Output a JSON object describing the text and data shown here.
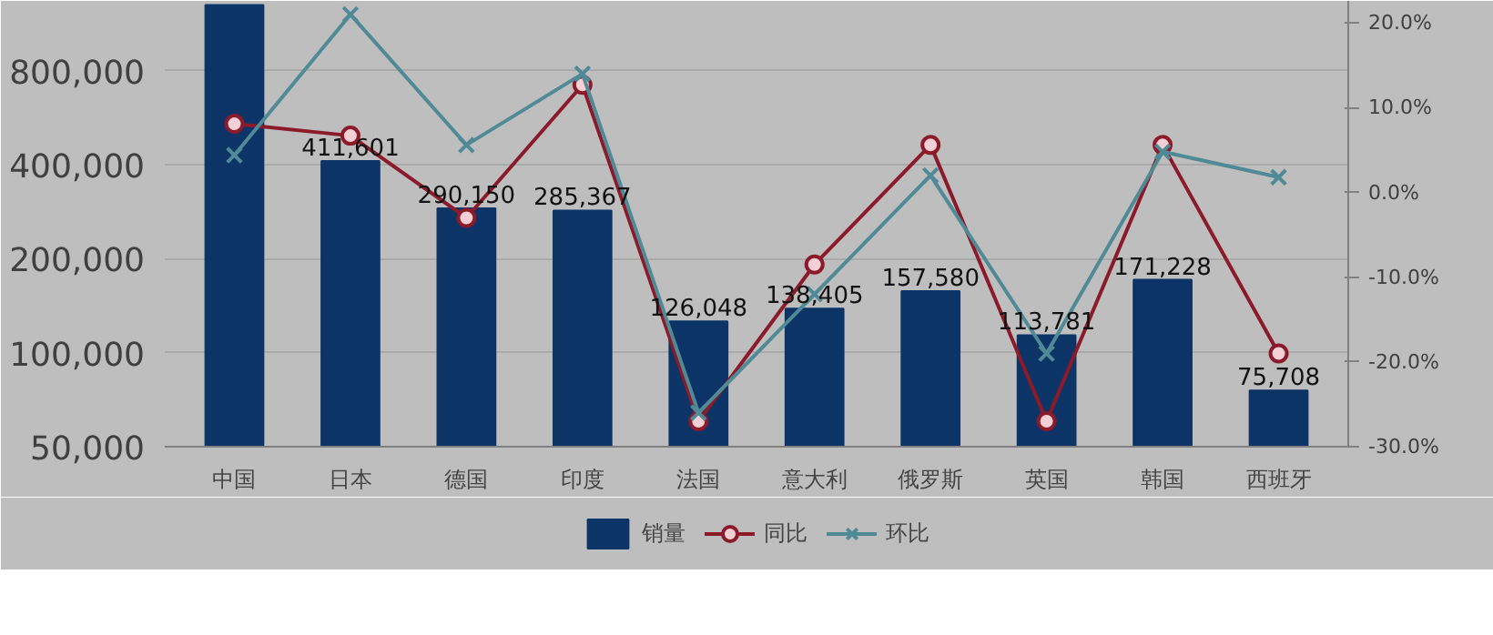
{
  "chart_data": {
    "type": "bar",
    "categories": [
      "中国",
      "日本",
      "德国",
      "印度",
      "法国",
      "意大利",
      "俄罗斯",
      "英国",
      "韩国",
      "西班牙"
    ],
    "series": [
      {
        "name": "销量",
        "color": "#0d3466",
        "values": [
          1300000,
          411601,
          290150,
          285367,
          126048,
          138405,
          157580,
          113781,
          171228,
          75708
        ],
        "value_labels": [
          null,
          "411,601",
          "290,150",
          "285,367",
          "126,048",
          "138,405",
          "157,580",
          "113,781",
          "171,228",
          "75,708"
        ]
      },
      {
        "name": "同比",
        "type": "line",
        "axis": "y2",
        "color": "#8b1a2a",
        "marker": "circle",
        "values": [
          8.1,
          6.7,
          -3.0,
          12.7,
          -27,
          -8.5,
          5.6,
          -27,
          5.6,
          -19
        ]
      },
      {
        "name": "环比",
        "type": "line",
        "axis": "y2",
        "color": "#4f8a96",
        "marker": "cross",
        "values": [
          4.4,
          21,
          5.6,
          14,
          -26,
          -12,
          2,
          -19,
          4.8,
          1.8
        ]
      }
    ],
    "log": "y",
    "ylim": [
      50000,
      1340000
    ],
    "yticks": [
      {
        "value": 50000,
        "label": "50,000"
      },
      {
        "value": 100000,
        "label": "100,000"
      },
      {
        "value": 200000,
        "label": "200,000"
      },
      {
        "value": 400000,
        "label": "400,000"
      },
      {
        "value": 800000,
        "label": "800,000"
      }
    ],
    "y2lim": [
      -30,
      22.6
    ],
    "y2ticks": [
      {
        "value": -30,
        "label": "-30.0%"
      },
      {
        "value": -20,
        "label": "-20.0%"
      },
      {
        "value": -10,
        "label": "-10.0%"
      },
      {
        "value": 0,
        "label": "0.0%"
      },
      {
        "value": 10,
        "label": "10.0%"
      },
      {
        "value": 20,
        "label": "20.0%"
      }
    ],
    "grid": "y",
    "legend": "bottom"
  }
}
